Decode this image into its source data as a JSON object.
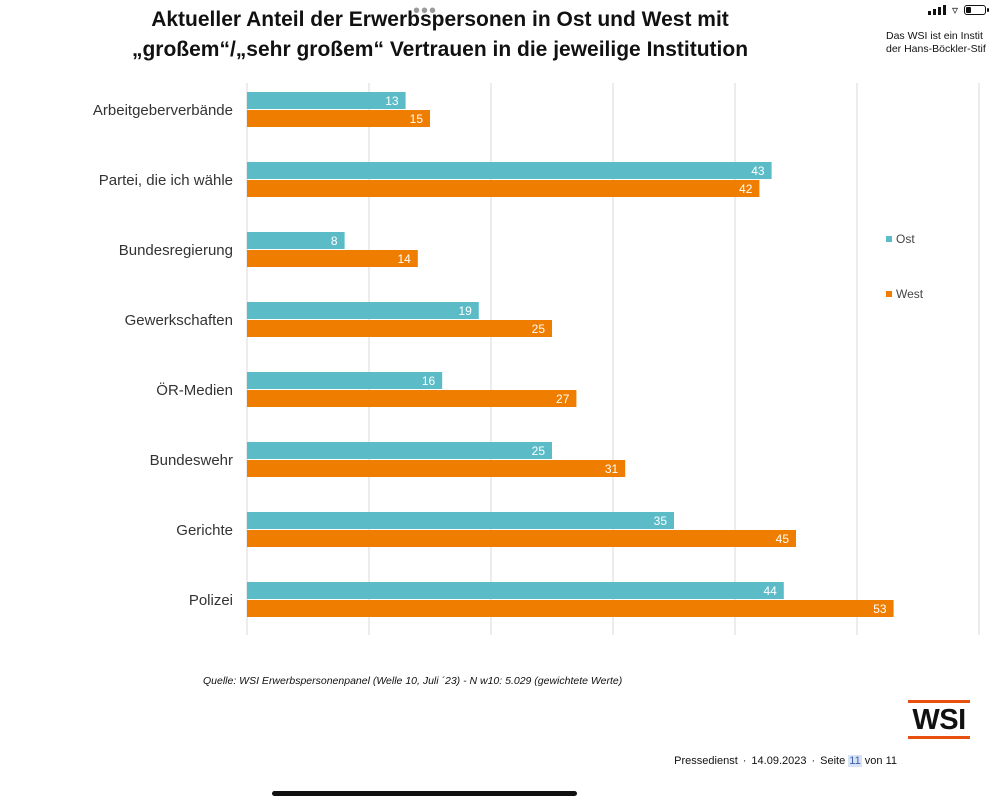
{
  "title_line1": "Aktueller Anteil der Erwerbspersonen in Ost und West mit",
  "title_line2": "„großem“/„sehr großem“ Vertrauen in die jeweilige Institution",
  "side_note": {
    "line1": "Das WSI ist ein Instit",
    "line2": "der Hans-Böckler-Stif"
  },
  "source": "Quelle: WSI Erwerbspersonenpanel (Welle 10, Juli ´23) - N w10: 5.029 (gewichtete Werte)",
  "logo_text": "WSI",
  "footer": {
    "label": "Pressedienst",
    "date": "14.09.2023",
    "page_label": "Seite",
    "page": "11",
    "of_label": "von 11"
  },
  "colors": {
    "ost": "#5bbcc7",
    "west": "#ef7d00",
    "grid": "#d9d9d9",
    "accent": "#e8500f"
  },
  "chart_data": {
    "type": "bar",
    "orientation": "horizontal",
    "title": "Aktueller Anteil der Erwerbspersonen in Ost und West mit „großem“/„sehr großem“ Vertrauen in die jeweilige Institution",
    "categories": [
      "Arbeitgeberverbände",
      "Partei, die ich wähle",
      "Bundesregierung",
      "Gewerkschaften",
      "ÖR-Medien",
      "Bundeswehr",
      "Gerichte",
      "Polizei"
    ],
    "series": [
      {
        "name": "Ost",
        "color": "#5bbcc7",
        "values": [
          13,
          43,
          8,
          19,
          16,
          25,
          35,
          44
        ]
      },
      {
        "name": "West",
        "color": "#ef7d00",
        "values": [
          15,
          42,
          14,
          25,
          27,
          31,
          45,
          53
        ]
      }
    ],
    "xlim": [
      0,
      60
    ],
    "grid": true,
    "legend": "right"
  }
}
